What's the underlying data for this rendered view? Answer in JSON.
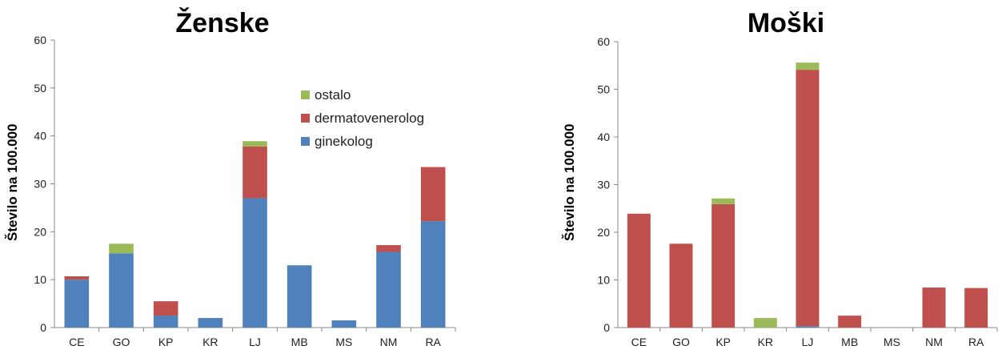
{
  "chart_data": [
    {
      "type": "bar",
      "stacked": true,
      "title": "Ženske",
      "ylabel": "Število na 100.000",
      "xlabel": "",
      "ylim": [
        0,
        60
      ],
      "yticks": [
        "0",
        "10",
        "20",
        "30",
        "40",
        "50",
        "60"
      ],
      "categories": [
        "CE",
        "GO",
        "KP",
        "KR",
        "LJ",
        "MB",
        "MS",
        "NM",
        "RA"
      ],
      "series": [
        {
          "name": "ginekolog",
          "color": "#4F81BD",
          "values": [
            10,
            15.5,
            2.5,
            2,
            27,
            13,
            1.5,
            15.8,
            22.2
          ]
        },
        {
          "name": "dermatovenerolog",
          "color": "#C0504D",
          "values": [
            0.7,
            0,
            3,
            0,
            10.8,
            0,
            0,
            1.4,
            11.3
          ]
        },
        {
          "name": "ostalo",
          "color": "#9BBB59",
          "values": [
            0,
            2,
            0,
            0,
            1.1,
            0,
            0,
            0,
            0
          ]
        }
      ],
      "legend": {
        "placement": "top-right",
        "order": [
          "ostalo",
          "dermatovenerolog",
          "ginekolog"
        ]
      }
    },
    {
      "type": "bar",
      "stacked": true,
      "title": "Moški",
      "ylabel": "Število na 100.000",
      "xlabel": "",
      "ylim": [
        0,
        60
      ],
      "yticks": [
        "0",
        "10",
        "20",
        "30",
        "40",
        "50",
        "60"
      ],
      "categories": [
        "CE",
        "GO",
        "KP",
        "KR",
        "LJ",
        "MB",
        "MS",
        "NM",
        "RA"
      ],
      "series": [
        {
          "name": "ginekolog",
          "color": "#4F81BD",
          "values": [
            0,
            0,
            0,
            0,
            0.3,
            0,
            0,
            0,
            0
          ]
        },
        {
          "name": "dermatovenerolog",
          "color": "#C0504D",
          "values": [
            23.9,
            17.6,
            25.9,
            0,
            53.8,
            2.5,
            0,
            8.4,
            8.3
          ]
        },
        {
          "name": "ostalo",
          "color": "#9BBB59",
          "values": [
            0,
            0,
            1.2,
            2,
            1.5,
            0,
            0,
            0,
            0
          ]
        }
      ]
    }
  ]
}
